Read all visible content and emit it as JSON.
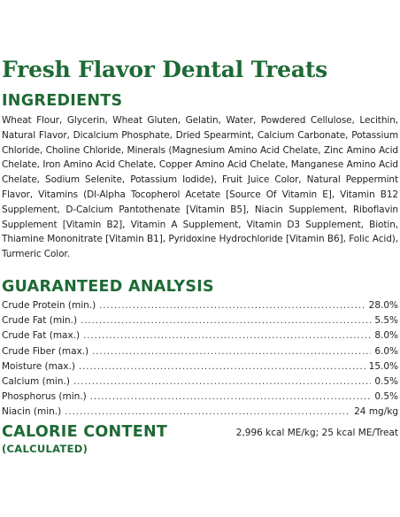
{
  "title": "Fresh Flavor Dental Treats",
  "ingredients": {
    "heading": "INGREDIENTS",
    "text": "Wheat Flour, Glycerin, Wheat Gluten, Gelatin, Water, Powdered Cellulose, Lecithin, Natural Flavor, Dicalcium Phosphate, Dried Spearmint, Calcium Carbonate, Potassium Chloride, Choline Chloride, Minerals (Magnesium Amino Acid Chelate, Zinc Amino Acid Chelate, Iron Amino Acid Chelate, Copper Amino Acid Chelate, Manganese Amino Acid Chelate, Sodium Selenite, Potassium Iodide), Fruit Juice Color, Natural Peppermint Flavor, Vitamins (Dl-Alpha Tocopherol Acetate [Source Of Vitamin E], Vitamin B12 Supplement, D-Calcium Pantothenate [Vitamin B5], Niacin Supplement, Riboflavin Supplement [Vitamin B2], Vitamin A Supplement, Vitamin D3 Supplement, Biotin, Thiamine Mononitrate [Vitamin B1], Pyridoxine Hydrochloride [Vitamin B6], Folic Acid), Turmeric Color."
  },
  "analysis": {
    "heading": "GUARANTEED ANALYSIS",
    "rows": [
      {
        "label": "Crude Protein (min.)",
        "value": "28.0%"
      },
      {
        "label": "Crude Fat (min.)",
        "value": "5.5%"
      },
      {
        "label": "Crude Fat (max.)",
        "value": "8.0%"
      },
      {
        "label": "Crude Fiber (max.)",
        "value": "6.0%"
      },
      {
        "label": "Moisture (max.)",
        "value": "15.0%"
      },
      {
        "label": "Calcium (min.)",
        "value": "0.5%"
      },
      {
        "label": "Phosphorus (min.)",
        "value": "0.5%"
      },
      {
        "label": "Niacin (min.)",
        "value": "24 mg/kg"
      }
    ]
  },
  "calorie": {
    "heading": "CALORIE CONTENT",
    "subheading": "(CALCULATED)",
    "value": "2,996 kcal ME/kg; 25 kcal ME/Treat"
  }
}
